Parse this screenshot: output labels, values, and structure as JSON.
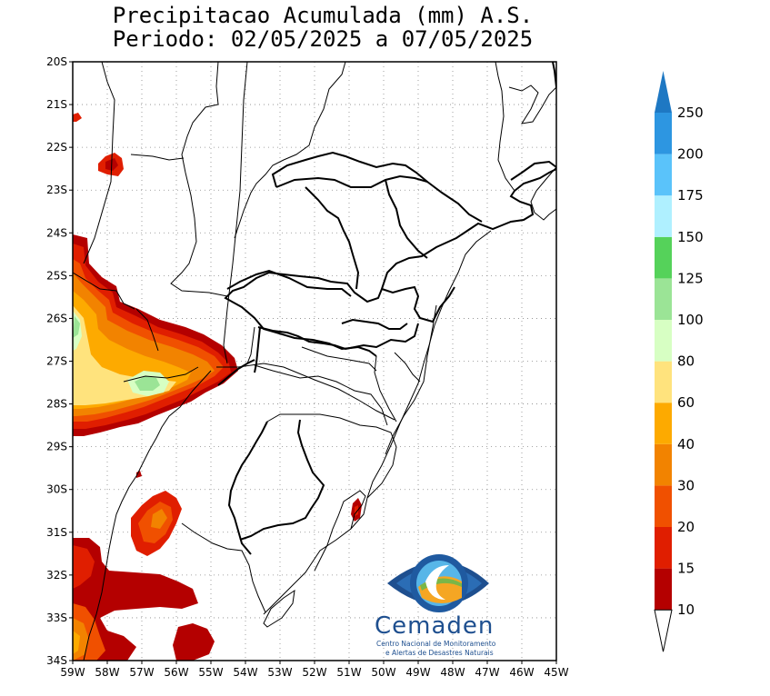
{
  "title": {
    "line1": "Precipitacao Acumulada (mm) A.S.",
    "line2": "Periodo: 02/05/2025 a 07/05/2025"
  },
  "map": {
    "lat_labels": [
      "20S",
      "21S",
      "22S",
      "23S",
      "24S",
      "25S",
      "26S",
      "27S",
      "28S",
      "29S",
      "30S",
      "31S",
      "32S",
      "33S",
      "34S"
    ],
    "lon_labels": [
      "59W",
      "58W",
      "57W",
      "56W",
      "55W",
      "54W",
      "53W",
      "52W",
      "51W",
      "50W",
      "49W",
      "48W",
      "47W",
      "46W",
      "45W"
    ],
    "lat_range": [
      -34,
      -20
    ],
    "lon_range": [
      -59,
      -45
    ]
  },
  "colorbar": {
    "levels": [
      "10",
      "15",
      "20",
      "30",
      "40",
      "60",
      "80",
      "100",
      "125",
      "150",
      "175",
      "200",
      "250"
    ],
    "colors": [
      "#b40000",
      "#e01e00",
      "#f05000",
      "#f28300",
      "#fdaa00",
      "#ffe37d",
      "#d7ffc3",
      "#9be496",
      "#55d25a",
      "#aff0ff",
      "#5ac3fa",
      "#2d96e1",
      "#1e78c3"
    ]
  },
  "logo": {
    "name": "Cemaden",
    "tagline1": "Centro Nacional de Monitoramento",
    "tagline2": "e Alertas de Desastres Naturais"
  }
}
